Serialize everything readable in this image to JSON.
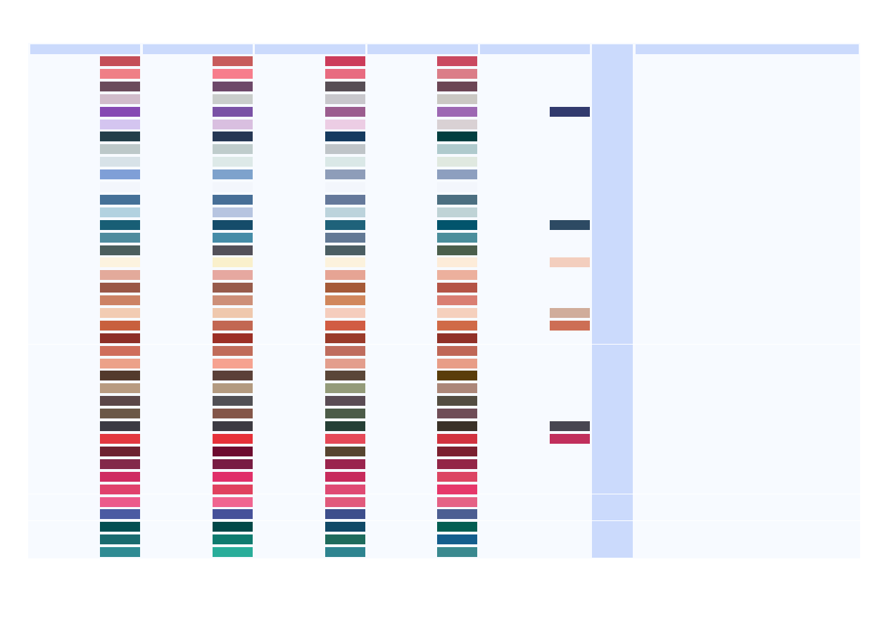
{
  "palette": {
    "columns": [
      {
        "swatches": [
          "#c44e57",
          "#ef7f86",
          "#6b4b5b",
          "#d1bccb",
          "#8649b3",
          "#d4c5f0",
          "#233f4a",
          "#bcc8c9",
          "#d7e2e8",
          "#7f9fd7",
          "#f3f6fc",
          "#457198",
          "#b2d2e0",
          "#185e75",
          "#4f8c9e",
          "#4b5e5c",
          "#fcf3df",
          "#e3aa9b",
          "#9a5746",
          "#cc8264",
          "#f2ccb3",
          "#c8603e",
          "#8d2f27",
          "#cf6e5b",
          "#eca189",
          "#533a2c",
          "#b89b81",
          "#5b4748",
          "#6b5847",
          "#3b3a43",
          "#e33840",
          "#6d2130",
          "#83294a",
          "#cf2c62",
          "#e0416c",
          "#ec5a8b",
          "#4b5ba2",
          "#024f52",
          "#1a6b6f",
          "#2f8b93"
        ]
      },
      {
        "swatches": [
          "#c75b5b",
          "#f77d8c",
          "#6d4869",
          "#c9cdcb",
          "#7a52a6",
          "#d9bfe0",
          "#263754",
          "#bfcccc",
          "#dde9e8",
          "#7ea2cc",
          "#f3f6fc",
          "#476f97",
          "#b6c4e0",
          "#154c6a",
          "#458ca8",
          "#535059",
          "#faf0cc",
          "#e6a8a0",
          "#975b4b",
          "#cd8f78",
          "#efc8ad",
          "#c26752",
          "#9c3026",
          "#c06c5a",
          "#f6a290",
          "#5b4038",
          "#b39a80",
          "#515055",
          "#845649",
          "#3c3a42",
          "#e6313a",
          "#6d0b30",
          "#781c43",
          "#e02f69",
          "#e0415e",
          "#f06590",
          "#46519a",
          "#014848",
          "#0f7b6f",
          "#29ad9a"
        ]
      },
      {
        "swatches": [
          "#cc3c5a",
          "#e86b80",
          "#574e55",
          "#c8c7cc",
          "#9b5d8f",
          "#eccde4",
          "#153a5f",
          "#bfc4c8",
          "#dae8e7",
          "#8e9db9",
          "#f3f6fc",
          "#65799b",
          "#bcd3dc",
          "#1f627a",
          "#627995",
          "#4b5e63",
          "#fcf2dd",
          "#e6a494",
          "#a55a38",
          "#d1875c",
          "#f5cdbd",
          "#d15c43",
          "#9a3b2a",
          "#bf6d5e",
          "#e39e8d",
          "#5a4638",
          "#949b7a",
          "#5b4c55",
          "#4c5b48",
          "#253f36",
          "#e54958",
          "#574530",
          "#9a244e",
          "#c72b5c",
          "#df4a73",
          "#e15a7c",
          "#3d4e8c",
          "#104967",
          "#1e6b5c",
          "#2e8490"
        ]
      },
      {
        "swatches": [
          "#ca4960",
          "#db7d88",
          "#6c4655",
          "#cac8c3",
          "#9d68b3",
          "#d9d1d4",
          "#023f40",
          "#afcacd",
          "#e0e9e0",
          "#8d9fbf",
          "#f3f6fc",
          "#4c6f81",
          "#bfd3d6",
          "#02546c",
          "#4b8e9c",
          "#4b5f4c",
          "#fdecd9",
          "#ecb09d",
          "#b45446",
          "#d97e72",
          "#f5d0bd",
          "#d06a47",
          "#913128",
          "#bf6756",
          "#e89d87",
          "#5a3d0a",
          "#ac8779",
          "#534d41",
          "#6f4d57",
          "#3a3128",
          "#d13340",
          "#7b2030",
          "#932547",
          "#dc4563",
          "#e6376a",
          "#e56286",
          "#4c5e92",
          "#025e52",
          "#145e8d",
          "#3a898f"
        ]
      },
      {
        "swatches": [
          null,
          null,
          null,
          null,
          "#323a6e",
          null,
          null,
          null,
          null,
          null,
          null,
          null,
          null,
          "#2d4a63",
          null,
          null,
          "#f3cebe",
          null,
          null,
          null,
          "#d0ad9b",
          "#cd6e55",
          null,
          null,
          null,
          null,
          null,
          null,
          null,
          "#484650",
          "#c12f5c",
          null,
          null,
          null,
          null,
          null,
          null,
          null,
          null,
          null
        ]
      }
    ]
  }
}
